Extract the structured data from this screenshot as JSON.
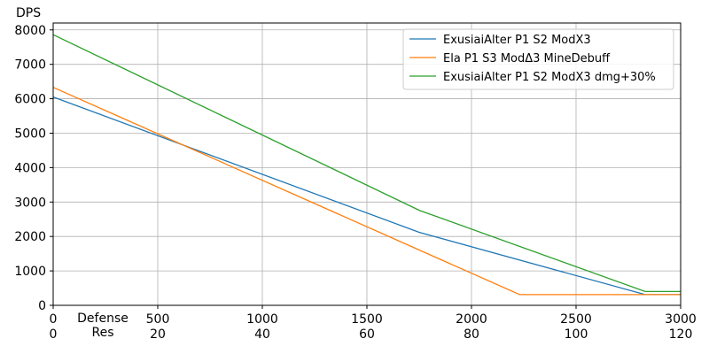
{
  "chart_data": {
    "type": "line",
    "ylabel": "DPS",
    "xlabel_lines": [
      "Defense",
      "Res"
    ],
    "xlim": [
      0,
      3000
    ],
    "ylim": [
      0,
      8200
    ],
    "grid": true,
    "legend_position": "top-right",
    "x_ticks_primary": [
      "0",
      "500",
      "1000",
      "1500",
      "2000",
      "2500",
      "3000"
    ],
    "x_ticks_secondary": [
      "0",
      "20",
      "40",
      "60",
      "80",
      "100",
      "120"
    ],
    "y_ticks": [
      "0",
      "1000",
      "2000",
      "3000",
      "4000",
      "5000",
      "6000",
      "7000",
      "8000"
    ],
    "series": [
      {
        "name": "ExusiaiAlter P1 S2 ModX3",
        "color": "#1f77b4",
        "points": [
          [
            0,
            6050
          ],
          [
            1750,
            2120
          ],
          [
            2830,
            310
          ],
          [
            3000,
            310
          ]
        ]
      },
      {
        "name": "Ela P1 S3 ModΔ3 MineDebuff",
        "color": "#ff7f0e",
        "points": [
          [
            0,
            6330
          ],
          [
            2230,
            310
          ],
          [
            3000,
            310
          ]
        ]
      },
      {
        "name": "ExusiaiAlter P1 S2 ModX3 dmg+30%",
        "color": "#2ca02c",
        "points": [
          [
            0,
            7860
          ],
          [
            1750,
            2760
          ],
          [
            2830,
            400
          ],
          [
            3000,
            400
          ]
        ]
      }
    ]
  }
}
